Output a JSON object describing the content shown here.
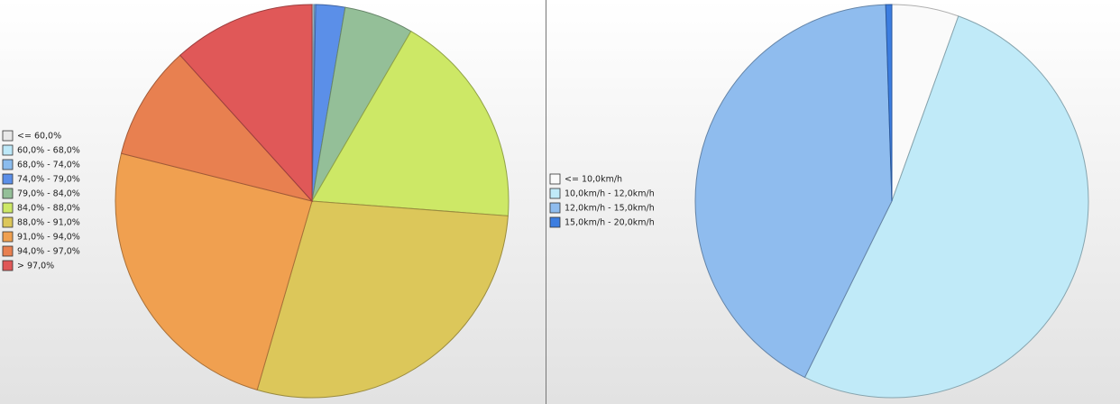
{
  "chart_data": [
    {
      "type": "pie",
      "categories": [
        "<= 60,0%",
        "60,0% - 68,0%",
        "68,0% - 74,0%",
        "74,0% - 79,0%",
        "79,0% - 84,0%",
        "84,0% - 88,0%",
        "88,0% - 91,0%",
        "91,0% - 94,0%",
        "94,0% - 97,0%",
        "> 97,0%"
      ],
      "values": [
        0.1,
        0.1,
        0.1,
        2.4,
        5.7,
        17.8,
        28.3,
        24.4,
        9.4,
        11.7
      ],
      "colors": [
        "#e8e8e8",
        "#bde8f8",
        "#8bbcee",
        "#5b8fe8",
        "#94bf98",
        "#cde866",
        "#dcc75a",
        "#f0a050",
        "#e88050",
        "#e05858"
      ]
    },
    {
      "type": "pie",
      "categories": [
        "<= 10,0km/h",
        "10,0km/h - 12,0km/h",
        "12,0km/h - 15,0km/h",
        "15,0km/h - 20,0km/h"
      ],
      "values": [
        5.5,
        51.8,
        42.2,
        0.5
      ],
      "colors": [
        "#fafafa",
        "#c0eaf8",
        "#8fbcee",
        "#3c7de0"
      ]
    }
  ]
}
